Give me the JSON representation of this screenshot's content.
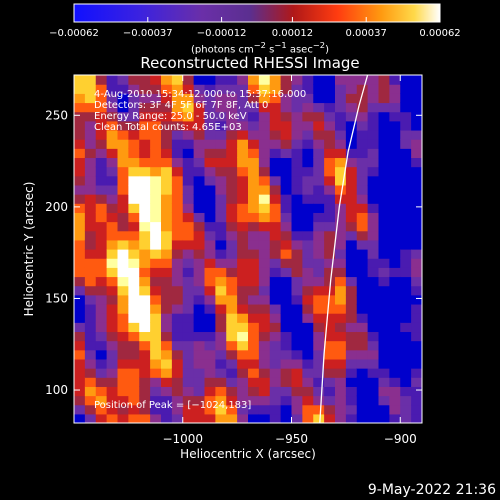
{
  "chart_data": {
    "type": "heatmap",
    "title": "Reconstructed RHESSI Image",
    "xlabel": "Heliocentric X (arcsec)",
    "ylabel": "Heliocentric Y (arcsec)",
    "xlim": [
      -1050,
      -890
    ],
    "ylim": [
      82,
      272
    ],
    "xticks": [
      -1000,
      -950,
      -900
    ],
    "xtick_labels": [
      "−1000",
      "−950",
      "−900"
    ],
    "yticks": [
      100,
      150,
      200,
      250
    ],
    "ytick_labels": [
      "100",
      "150",
      "200",
      "250"
    ],
    "annotations": [
      "4-Aug-2010 15:34:12.000 to 15:37:16.000",
      "Detectors: 3F 4F 5F 6F 7F 8F, Att 0",
      "Energy Range: 25.0 - 50.0 keV",
      "Clean     Total counts: 4.65E+03"
    ],
    "peak_label": "Position of Peak = [−1024,183]",
    "peak": [
      -1024,
      183
    ],
    "limb_curve": [
      [
        -937,
        82
      ],
      [
        -935,
        120
      ],
      [
        -932,
        160
      ],
      [
        -928,
        200
      ],
      [
        -924,
        230
      ],
      [
        -919,
        255
      ],
      [
        -915,
        272
      ]
    ],
    "colorbar": {
      "range": [
        -0.00062,
        0.00062
      ],
      "ticks": [
        -0.00062,
        -0.00037,
        -0.00012,
        0.00012,
        0.00037,
        0.00062
      ],
      "tick_labels": [
        "−0.00062",
        "−0.00037",
        "−0.00012",
        "0.00012",
        "0.00037",
        "0.00062"
      ],
      "units_label": "(photons cm<sup>−2</sup> s<sup>−1</sup> asec<sup>−2</sup>)"
    },
    "colormap": [
      "#0000cc",
      "#4a1bb0",
      "#6a2fa8",
      "#8a2f8f",
      "#a02840",
      "#cc2020",
      "#ff5a10",
      "#ff9a10",
      "#ffd030",
      "#ffffa0",
      "#ffffff"
    ]
  },
  "footer": {
    "timestamp": "9-May-2022 21:36"
  }
}
